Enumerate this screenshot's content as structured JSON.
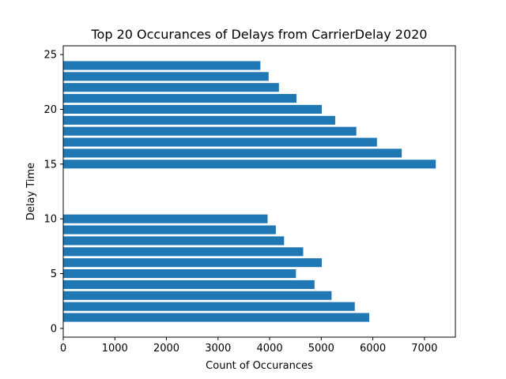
{
  "chart_data": {
    "type": "bar",
    "orientation": "horizontal",
    "title": "Top 20 Occurances of Delays from CarrierDelay 2020",
    "xlabel": "Count of Occurances",
    "ylabel": "Delay Time",
    "xlim": [
      0,
      7600
    ],
    "ylim": [
      -0.8,
      25.8
    ],
    "xticks": [
      0,
      1000,
      2000,
      3000,
      4000,
      5000,
      6000,
      7000
    ],
    "yticks": [
      0,
      5,
      10,
      15,
      20,
      25
    ],
    "grid": false,
    "legend": "none",
    "bar_color": "#1f77b4",
    "points": [
      {
        "y": 1,
        "x": 5930
      },
      {
        "y": 2,
        "x": 5650
      },
      {
        "y": 3,
        "x": 5200
      },
      {
        "y": 4,
        "x": 4870
      },
      {
        "y": 5,
        "x": 4510
      },
      {
        "y": 6,
        "x": 5010
      },
      {
        "y": 7,
        "x": 4650
      },
      {
        "y": 8,
        "x": 4280
      },
      {
        "y": 9,
        "x": 4120
      },
      {
        "y": 10,
        "x": 3960
      },
      {
        "y": 15,
        "x": 7220
      },
      {
        "y": 16,
        "x": 6560
      },
      {
        "y": 17,
        "x": 6080
      },
      {
        "y": 18,
        "x": 5680
      },
      {
        "y": 19,
        "x": 5270
      },
      {
        "y": 20,
        "x": 5010
      },
      {
        "y": 21,
        "x": 4520
      },
      {
        "y": 22,
        "x": 4180
      },
      {
        "y": 23,
        "x": 3980
      },
      {
        "y": 24,
        "x": 3820
      }
    ]
  }
}
